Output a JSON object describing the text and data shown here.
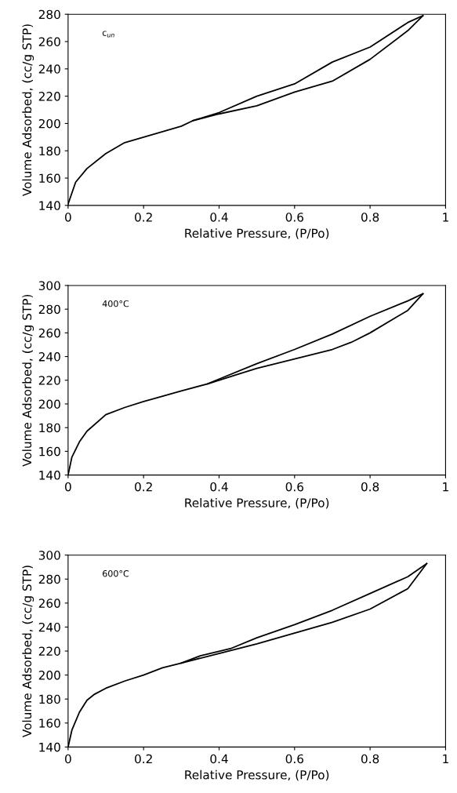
{
  "chart_data": [
    {
      "type": "line",
      "xlabel": "Relative Pressure, (P/Po)",
      "ylabel": "Volume Adsorbed, (cc/g STP)",
      "annotations": [
        "c$_{un}$"
      ],
      "xlim": [
        0,
        1
      ],
      "ylim": [
        140,
        280
      ],
      "xticks": [
        0,
        0.2,
        0.4,
        0.6,
        0.8,
        1
      ],
      "yticks": [
        140,
        160,
        180,
        200,
        220,
        240,
        260,
        280
      ],
      "marker": "none",
      "line_style": "solid",
      "grid": false,
      "legend": false,
      "series": [
        {
          "color": "#000000",
          "x": [
            0,
            0.02,
            0.05,
            0.1,
            0.15,
            0.2,
            0.3,
            0.33,
            0.4,
            0.5,
            0.6,
            0.7,
            0.8,
            0.9,
            0.94
          ],
          "values": [
            141,
            157,
            167,
            178,
            186,
            190,
            198,
            202,
            207,
            213,
            223,
            231,
            247,
            268,
            279
          ]
        },
        {
          "color": "#000000",
          "x": [
            0.94,
            0.9,
            0.8,
            0.7,
            0.6,
            0.5,
            0.4,
            0.33
          ],
          "values": [
            279,
            274,
            256,
            245,
            229,
            220,
            208,
            202
          ]
        }
      ]
    },
    {
      "type": "line",
      "xlabel": "Relative Pressure, (P/Po)",
      "ylabel": "Volume Adsorbed, (cc/g STP)",
      "annotations": [
        "400°C"
      ],
      "xlim": [
        0,
        1
      ],
      "ylim": [
        140,
        300
      ],
      "xticks": [
        0,
        0.2,
        0.4,
        0.6,
        0.8,
        1
      ],
      "yticks": [
        140,
        160,
        180,
        200,
        220,
        240,
        260,
        280,
        300
      ],
      "marker": "none",
      "line_style": "solid",
      "grid": false,
      "legend": false,
      "series": [
        {
          "color": "#000000",
          "x": [
            0,
            0.01,
            0.03,
            0.05,
            0.1,
            0.15,
            0.2,
            0.3,
            0.37,
            0.45,
            0.5,
            0.6,
            0.7,
            0.75,
            0.8,
            0.9,
            0.94
          ],
          "values": [
            140,
            155,
            168,
            177,
            191,
            197,
            202,
            211,
            217,
            225,
            230,
            238,
            246,
            252,
            260,
            279,
            293
          ]
        },
        {
          "color": "#000000",
          "x": [
            0.94,
            0.9,
            0.8,
            0.7,
            0.6,
            0.5,
            0.4,
            0.37
          ],
          "values": [
            293,
            287,
            274,
            259,
            246,
            234,
            221,
            217
          ]
        }
      ]
    },
    {
      "type": "line",
      "xlabel": "Relative Pressure, (P/Po)",
      "ylabel": "Volume Adsorbed, (cc/g STP)",
      "annotations": [
        "600°C"
      ],
      "xlim": [
        0,
        1
      ],
      "ylim": [
        140,
        300
      ],
      "xticks": [
        0,
        0.2,
        0.4,
        0.6,
        0.8,
        1
      ],
      "yticks": [
        140,
        160,
        180,
        200,
        220,
        240,
        260,
        280,
        300
      ],
      "marker": "none",
      "line_style": "solid",
      "grid": false,
      "legend": false,
      "series": [
        {
          "color": "#000000",
          "x": [
            0,
            0.01,
            0.03,
            0.05,
            0.07,
            0.1,
            0.15,
            0.2,
            0.25,
            0.3,
            0.4,
            0.5,
            0.6,
            0.7,
            0.8,
            0.9,
            0.95
          ],
          "values": [
            140,
            154,
            169,
            179,
            184,
            189,
            195,
            200,
            206,
            210,
            218,
            226,
            235,
            244,
            255,
            272,
            293
          ]
        },
        {
          "color": "#000000",
          "x": [
            0.95,
            0.9,
            0.8,
            0.7,
            0.6,
            0.5,
            0.43,
            0.35,
            0.3
          ],
          "values": [
            293,
            282,
            268,
            254,
            242,
            231,
            222,
            216,
            210
          ]
        }
      ]
    }
  ]
}
